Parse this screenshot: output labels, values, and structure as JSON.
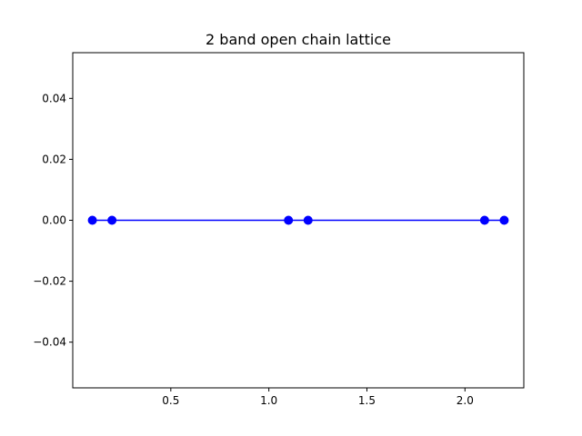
{
  "chart_data": {
    "type": "line",
    "title": "2 band open chain lattice",
    "xlabel": "",
    "ylabel": "",
    "xlim": [
      0.0,
      2.3
    ],
    "ylim": [
      -0.055,
      0.055
    ],
    "grid": false,
    "x_ticks": [
      0.5,
      1.0,
      1.5,
      2.0
    ],
    "x_tick_labels": [
      "0.5",
      "1.0",
      "1.5",
      "2.0"
    ],
    "y_ticks": [
      -0.04,
      -0.02,
      0.0,
      0.02,
      0.04
    ],
    "y_tick_labels": [
      "−0.04",
      "−0.02",
      "0.00",
      "0.02",
      "0.04"
    ],
    "series": [
      {
        "color": "#0000ff",
        "marker": "circle",
        "x": [
          0.1,
          0.2,
          1.1,
          1.2,
          2.1,
          2.2
        ],
        "y": [
          0,
          0,
          0,
          0,
          0,
          0
        ]
      }
    ]
  }
}
